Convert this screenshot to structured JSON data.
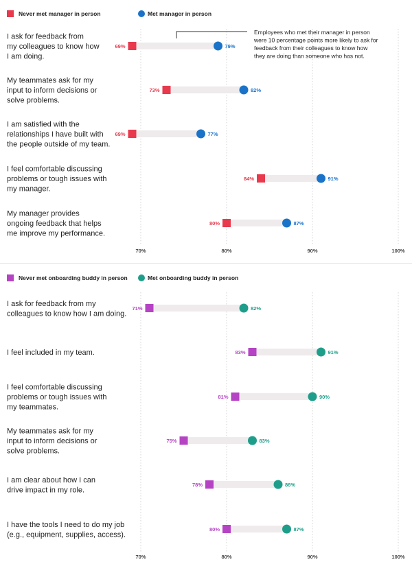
{
  "chart_data": [
    {
      "type": "dumbbell",
      "legend": {
        "before": {
          "label": "Never met manager in person",
          "color": "#e8394d"
        },
        "after": {
          "label": "Met manager in person",
          "color": "#1a73c8"
        }
      },
      "xlim": [
        70,
        100
      ],
      "ticks": [
        "70%",
        "80%",
        "90%",
        "100%"
      ],
      "tick_values": [
        70,
        80,
        90,
        100
      ],
      "annotation": [
        "Employees who met their manager in person",
        "were 10 percentage points more likely to ask for",
        "feedback from their colleagues to know how",
        "they are doing than someone who has not."
      ],
      "rows": [
        {
          "label": [
            "I ask for feedback from",
            "my colleagues to know how",
            "I am doing."
          ],
          "before": 69,
          "after": 79,
          "before_label": "69%",
          "after_label": "79%"
        },
        {
          "label": [
            "My teammates ask for my",
            "input to inform decisions or",
            "solve problems."
          ],
          "before": 73,
          "after": 82,
          "before_label": "73%",
          "after_label": "82%"
        },
        {
          "label": [
            "I am satisfied with the",
            "relationships I have built with",
            "the people outside of my team."
          ],
          "before": 69,
          "after": 77,
          "before_label": "69%",
          "after_label": "77%"
        },
        {
          "label": [
            "I feel comfortable discussing",
            "problems or tough issues with",
            "my manager."
          ],
          "before": 84,
          "after": 91,
          "before_label": "84%",
          "after_label": "91%"
        },
        {
          "label": [
            "My manager provides",
            "ongoing feedback that helps",
            "me improve my performance."
          ],
          "before": 80,
          "after": 87,
          "before_label": "80%",
          "after_label": "87%"
        }
      ]
    },
    {
      "type": "dumbbell",
      "legend": {
        "before": {
          "label": "Never met onboarding buddy in person",
          "color": "#b543c4"
        },
        "after": {
          "label": "Met onboarding buddy in person",
          "color": "#1e9e8a"
        }
      },
      "xlim": [
        70,
        100
      ],
      "ticks": [
        "70%",
        "80%",
        "90%",
        "100%"
      ],
      "tick_values": [
        70,
        80,
        90,
        100
      ],
      "rows": [
        {
          "label": [
            "I ask for feedback from my",
            "colleagues to know how I am doing."
          ],
          "before": 71,
          "after": 82,
          "before_label": "71%",
          "after_label": "82%"
        },
        {
          "label": [
            "I feel included in my team."
          ],
          "before": 83,
          "after": 91,
          "before_label": "83%",
          "after_label": "91%"
        },
        {
          "label": [
            "I feel comfortable discussing",
            "problems or tough issues with",
            "my teammates."
          ],
          "before": 81,
          "after": 90,
          "before_label": "81%",
          "after_label": "90%"
        },
        {
          "label": [
            "My teammates ask for my",
            "input to inform decisions or",
            "solve problems."
          ],
          "before": 75,
          "after": 83,
          "before_label": "75%",
          "after_label": "83%"
        },
        {
          "label": [
            "I am clear about how I can",
            "drive impact in my role."
          ],
          "before": 78,
          "after": 86,
          "before_label": "78%",
          "after_label": "86%"
        },
        {
          "label": [
            "I have the tools I need to do my job",
            "(e.g., equipment, supplies, access)."
          ],
          "before": 80,
          "after": 87,
          "before_label": "80%",
          "after_label": "87%"
        }
      ]
    }
  ]
}
